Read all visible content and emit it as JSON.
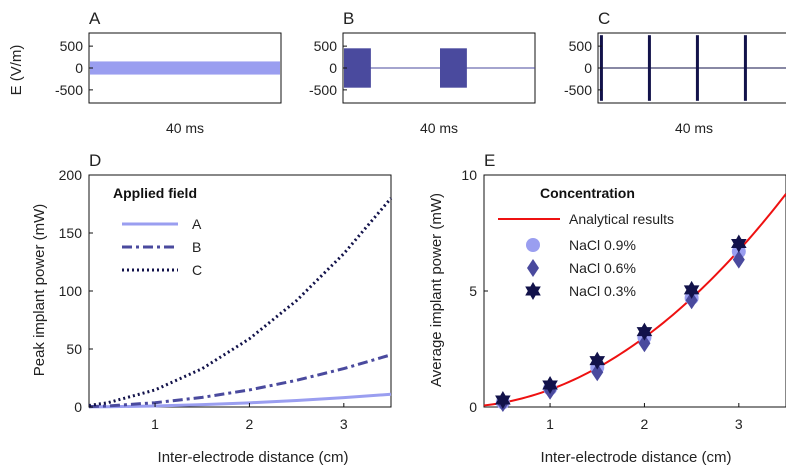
{
  "colors": {
    "light": "#9a9ef0",
    "medium": "#4a4a9e",
    "dark": "#12124a",
    "analytical": "#ee1111"
  },
  "chart_data": [
    {
      "id": "A",
      "type": "line",
      "panel_label": "A",
      "ylabel": "E (V/m)",
      "xlabel": "40 ms",
      "ylim": [
        -800,
        800
      ],
      "yticks": [
        500,
        0,
        -500
      ],
      "ytick_labels": [
        "500",
        "0",
        "-500"
      ],
      "waveform": "continuous sinusoid, amplitude ~150 V/m (solid band)",
      "amplitude": 150,
      "color": "light"
    },
    {
      "id": "B",
      "type": "line",
      "panel_label": "B",
      "xlabel": "40 ms",
      "ylim": [
        -800,
        800
      ],
      "yticks": [
        500,
        0,
        -500
      ],
      "ytick_labels": [
        "500",
        "0",
        "-500"
      ],
      "waveform": "two sinusoid bursts, amplitude ~450 V/m",
      "amplitude": 450,
      "bursts_fraction": [
        [
          0.0,
          0.14
        ],
        [
          0.5,
          0.64
        ]
      ],
      "color": "medium"
    },
    {
      "id": "C",
      "type": "line",
      "panel_label": "C",
      "xlabel": "40 ms",
      "ylim": [
        -800,
        800
      ],
      "yticks": [
        500,
        0,
        -500
      ],
      "ytick_labels": [
        "500",
        "0",
        "-500"
      ],
      "waveform": "four short high-amplitude pulses, amplitude ~750 V/m",
      "amplitude": 750,
      "pulses_fraction": [
        0.01,
        0.26,
        0.51,
        0.76
      ],
      "color": "dark"
    },
    {
      "id": "D",
      "type": "line",
      "panel_label": "D",
      "xlabel": "Inter-electrode distance (cm)",
      "ylabel": "Peak implant power (mW)",
      "xlim": [
        0.3,
        3.5
      ],
      "ylim": [
        0,
        200
      ],
      "xticks": [
        1,
        2,
        3
      ],
      "yticks": [
        0,
        50,
        100,
        150,
        200
      ],
      "legend_title": "Applied field",
      "legend_position": "top-left",
      "series": [
        {
          "name": "A",
          "style": "solid",
          "color": "light",
          "x": [
            0.3,
            0.5,
            1.0,
            1.5,
            2.0,
            2.5,
            3.0,
            3.5
          ],
          "y": [
            0.1,
            0.2,
            0.9,
            2.0,
            3.6,
            5.6,
            8.1,
            11.0
          ]
        },
        {
          "name": "B",
          "style": "dashdot",
          "color": "medium",
          "x": [
            0.3,
            0.5,
            1.0,
            1.5,
            2.0,
            2.5,
            3.0,
            3.5
          ],
          "y": [
            0.3,
            0.9,
            3.7,
            8.3,
            14.7,
            23.0,
            33.1,
            45.0
          ]
        },
        {
          "name": "C",
          "style": "dotted",
          "color": "dark",
          "x": [
            0.3,
            0.5,
            1.0,
            1.5,
            2.0,
            2.5,
            3.0,
            3.5
          ],
          "y": [
            1.3,
            3.7,
            14.7,
            33.1,
            58.8,
            91.8,
            132.2,
            180.0
          ]
        }
      ]
    },
    {
      "id": "E",
      "type": "scatter",
      "panel_label": "E",
      "xlabel": "Inter-electrode distance (cm)",
      "ylabel": "Average implant power (mW)",
      "xlim": [
        0.3,
        3.5
      ],
      "ylim": [
        0,
        10
      ],
      "xticks": [
        1,
        2,
        3
      ],
      "yticks": [
        0,
        5,
        10
      ],
      "legend_title": "Concentration",
      "legend_position": "top-left",
      "analytical": {
        "name": "Analytical results",
        "color": "analytical",
        "coefficient": 0.75,
        "x": [
          0.3,
          0.5,
          1.0,
          1.5,
          2.0,
          2.5,
          3.0,
          3.5
        ],
        "y": [
          0.07,
          0.19,
          0.75,
          1.69,
          3.0,
          4.69,
          6.75,
          9.19
        ]
      },
      "series": [
        {
          "name": "NaCl 0.9%",
          "marker": "circle",
          "color": "light",
          "x": [
            0.5,
            1.0,
            1.5,
            2.0,
            2.5,
            3.0
          ],
          "y": [
            0.2,
            0.8,
            1.7,
            3.0,
            4.7,
            6.7
          ]
        },
        {
          "name": "NaCl 0.6%",
          "marker": "diamond",
          "color": "medium",
          "x": [
            0.5,
            1.0,
            1.5,
            2.0,
            2.5,
            3.0
          ],
          "y": [
            0.17,
            0.7,
            1.5,
            2.75,
            4.6,
            6.35
          ]
        },
        {
          "name": "NaCl 0.3%",
          "marker": "star",
          "color": "dark",
          "x": [
            0.5,
            1.0,
            1.5,
            2.0,
            2.5,
            3.0
          ],
          "y": [
            0.3,
            0.95,
            2.0,
            3.25,
            5.05,
            7.05
          ]
        }
      ]
    }
  ]
}
